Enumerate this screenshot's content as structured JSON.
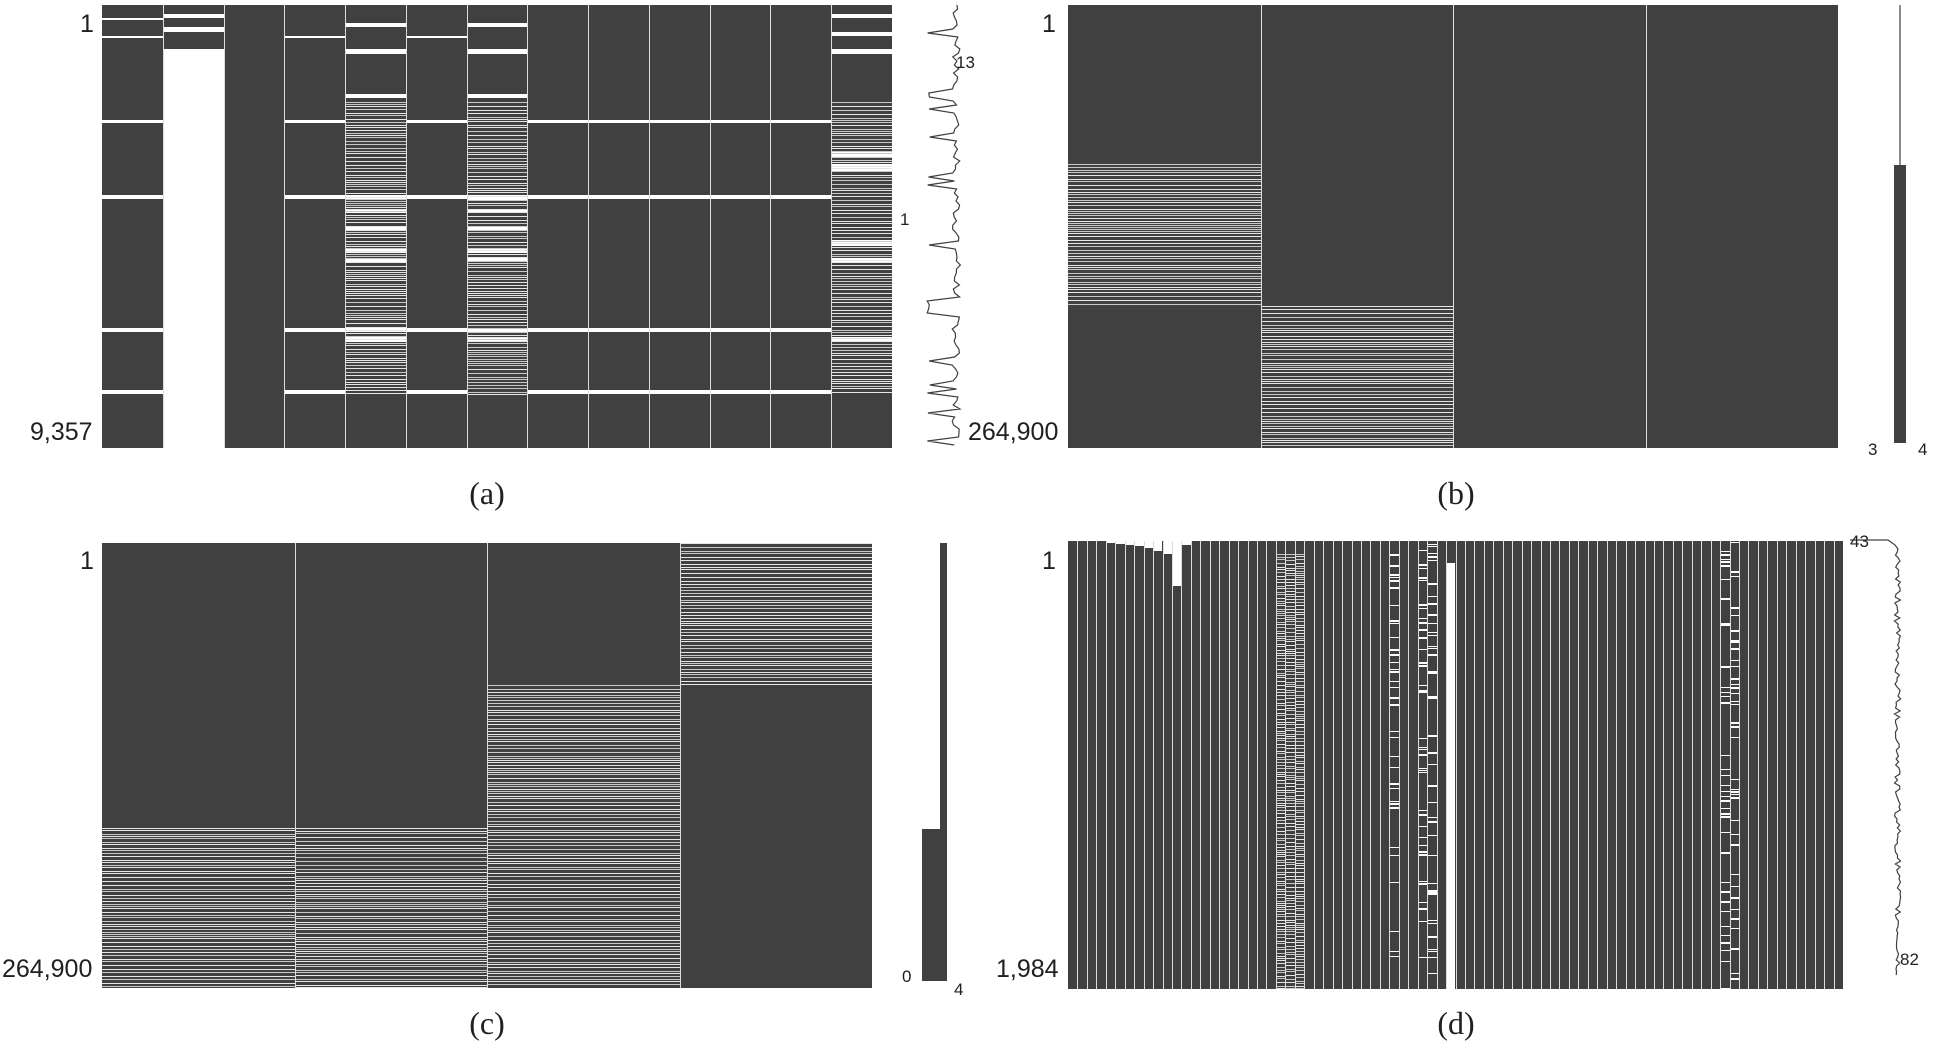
{
  "panels": [
    {
      "id": "a",
      "caption": "(a)",
      "row_labels": [
        "1",
        "9,357"
      ],
      "spark_labels": [
        "13",
        "1"
      ],
      "columns": [
        {
          "gaps": [
            [
              0.03,
              0.035
            ],
            [
              0.07,
              0.075
            ],
            [
              0.26,
              0.267
            ],
            [
              0.43,
              0.437
            ],
            [
              0.73,
              0.738
            ],
            [
              0.87,
              0.877
            ]
          ]
        },
        {
          "gaps": [
            [
              0.02,
              0.03
            ],
            [
              0.05,
              0.06
            ],
            [
              0.1,
              0.115
            ],
            [
              0.115,
              1.0
            ]
          ]
        },
        {
          "gaps": []
        },
        {
          "gaps": [
            [
              0.07,
              0.075
            ],
            [
              0.26,
              0.267
            ],
            [
              0.43,
              0.437
            ],
            [
              0.73,
              0.738
            ],
            [
              0.87,
              0.877
            ]
          ]
        },
        {
          "gaps": [
            [
              0.04,
              0.05
            ],
            [
              0.1,
              0.11
            ],
            [
              0.2,
              0.21
            ],
            [
              0.43,
              0.44
            ],
            [
              0.46,
              0.47
            ],
            [
              0.5,
              0.51
            ],
            [
              0.55,
              0.56
            ],
            [
              0.57,
              0.58
            ],
            [
              0.73,
              0.738
            ],
            [
              0.75,
              0.76
            ]
          ]
        },
        {
          "gaps": [
            [
              0.07,
              0.075
            ],
            [
              0.26,
              0.267
            ],
            [
              0.43,
              0.437
            ],
            [
              0.73,
              0.738
            ],
            [
              0.87,
              0.877
            ]
          ]
        },
        {
          "gaps": [
            [
              0.04,
              0.05
            ],
            [
              0.1,
              0.11
            ],
            [
              0.2,
              0.21
            ],
            [
              0.43,
              0.44
            ],
            [
              0.46,
              0.47
            ],
            [
              0.5,
              0.51
            ],
            [
              0.55,
              0.56
            ],
            [
              0.57,
              0.58
            ],
            [
              0.73,
              0.738
            ],
            [
              0.75,
              0.76
            ]
          ]
        },
        {
          "gaps": [
            [
              0.26,
              0.267
            ],
            [
              0.43,
              0.437
            ],
            [
              0.73,
              0.738
            ],
            [
              0.87,
              0.877
            ]
          ]
        },
        {
          "gaps": [
            [
              0.26,
              0.267
            ],
            [
              0.43,
              0.437
            ],
            [
              0.73,
              0.738
            ],
            [
              0.87,
              0.877
            ]
          ]
        },
        {
          "gaps": [
            [
              0.26,
              0.267
            ],
            [
              0.43,
              0.437
            ],
            [
              0.73,
              0.738
            ],
            [
              0.87,
              0.877
            ]
          ]
        },
        {
          "gaps": [
            [
              0.26,
              0.267
            ],
            [
              0.43,
              0.437
            ],
            [
              0.73,
              0.738
            ],
            [
              0.87,
              0.877
            ]
          ]
        },
        {
          "gaps": [
            [
              0.26,
              0.267
            ],
            [
              0.43,
              0.437
            ],
            [
              0.73,
              0.738
            ],
            [
              0.87,
              0.877
            ]
          ]
        },
        {
          "gaps": [
            [
              0.02,
              0.03
            ],
            [
              0.06,
              0.07
            ],
            [
              0.1,
              0.11
            ],
            [
              0.33,
              0.345
            ],
            [
              0.36,
              0.375
            ],
            [
              0.53,
              0.545
            ],
            [
              0.57,
              0.58
            ],
            [
              0.75,
              0.76
            ]
          ]
        }
      ]
    },
    {
      "id": "b",
      "caption": "(b)",
      "row_labels": [
        "1",
        "264,900"
      ],
      "spark_labels": [
        "3",
        "4"
      ],
      "columns": [
        {
          "stripe_band": [
            0.36,
            0.68
          ]
        },
        {
          "stripe_band": [
            0.68,
            1.0
          ]
        },
        {
          "stripe_band": null
        },
        {
          "stripe_band": null
        }
      ]
    },
    {
      "id": "c",
      "caption": "(c)",
      "row_labels": [
        "1",
        "264,900"
      ],
      "spark_labels": [
        "0",
        "4"
      ],
      "columns": [
        {
          "stripe_band": [
            0.64,
            1.0
          ]
        },
        {
          "stripe_band": [
            0.64,
            1.0
          ]
        },
        {
          "stripe_band": [
            0.32,
            1.0
          ]
        },
        {
          "stripe_band": [
            0.0,
            0.32
          ]
        }
      ]
    },
    {
      "id": "d",
      "caption": "(d)",
      "row_labels": [
        "1",
        "1,984"
      ],
      "spark_labels": [
        "43",
        "82"
      ],
      "column_count": 82
    }
  ],
  "colors": {
    "present": "#404040",
    "missing": "#ffffff",
    "separator": "#dcdcdc",
    "text": "#202020"
  },
  "chart_data": [
    {
      "type": "heatmap",
      "panel": "a",
      "title": "",
      "rows": 9357,
      "columns": 13,
      "row_labels": [
        "1",
        "9,357"
      ],
      "sparkline_range": [
        1,
        13
      ]
    },
    {
      "type": "heatmap",
      "panel": "b",
      "title": "",
      "rows": 264900,
      "columns": 4,
      "row_labels": [
        "1",
        "264,900"
      ],
      "sparkline_range": [
        3,
        4
      ]
    },
    {
      "type": "heatmap",
      "panel": "c",
      "title": "",
      "rows": 264900,
      "columns": 4,
      "row_labels": [
        "1",
        "264,900"
      ],
      "sparkline_range": [
        0,
        4
      ]
    },
    {
      "type": "heatmap",
      "panel": "d",
      "title": "",
      "rows": 1984,
      "columns": 82,
      "row_labels": [
        "1",
        "1,984"
      ],
      "sparkline_range": [
        43,
        82
      ]
    }
  ]
}
